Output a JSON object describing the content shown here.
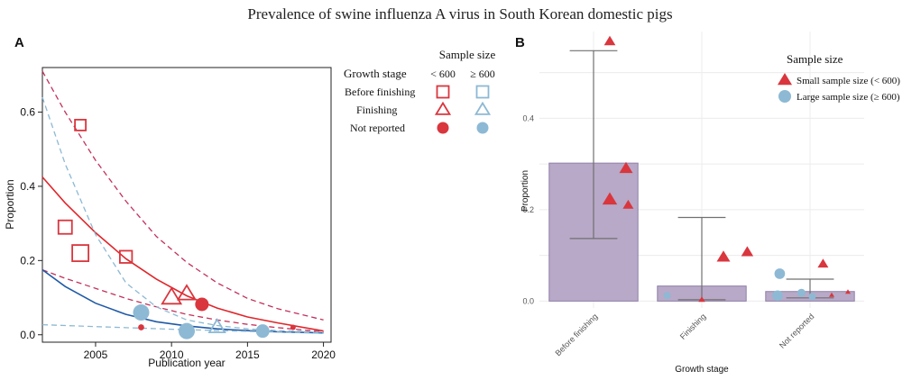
{
  "figure_title": "Prevalence of swine influenza A virus in South Korean domestic pigs",
  "colors": {
    "small": "#d9363e",
    "large": "#8db9d4",
    "fit_small": "#e0262b",
    "fit_large": "#1f5aa6",
    "ci_small": "#c3305a",
    "ci_large": "#8db9d4",
    "bar_fill": "#b7a9c7",
    "bar_stroke": "#8f7fa8",
    "whisker": "#707070"
  },
  "chart_data": [
    {
      "type": "scatter",
      "panel_label": "A",
      "xlabel": "Publication year",
      "ylabel": "Proportion",
      "xlim": [
        2001.5,
        2020.5
      ],
      "ylim": [
        -0.02,
        0.72
      ],
      "xticks": [
        "2005",
        "2010",
        "2015",
        "2020"
      ],
      "yticks": [
        "0.0",
        "0.2",
        "0.4",
        "0.6"
      ],
      "legend": {
        "title": "Sample size",
        "header_stage": "Growth stage",
        "header_small": "< 600",
        "header_large": "≥ 600",
        "rows": [
          {
            "label": "Before finishing",
            "symbol": "square"
          },
          {
            "label": "Finishing",
            "symbol": "triangle"
          },
          {
            "label": "Not reported",
            "symbol": "circle"
          }
        ]
      },
      "points": [
        {
          "x": 2003,
          "y": 0.29,
          "stage": "Before finishing",
          "size": "small",
          "scale": 1.0
        },
        {
          "x": 2004,
          "y": 0.565,
          "stage": "Before finishing",
          "size": "small",
          "scale": 0.8
        },
        {
          "x": 2004,
          "y": 0.22,
          "stage": "Before finishing",
          "size": "small",
          "scale": 1.2
        },
        {
          "x": 2007,
          "y": 0.21,
          "stage": "Before finishing",
          "size": "small",
          "scale": 0.9
        },
        {
          "x": 2010,
          "y": 0.1,
          "stage": "Finishing",
          "size": "small",
          "scale": 1.2
        },
        {
          "x": 2011,
          "y": 0.11,
          "stage": "Finishing",
          "size": "small",
          "scale": 1.1
        },
        {
          "x": 2011,
          "y": 0.013,
          "stage": "Finishing",
          "size": "small",
          "scale": 0.5
        },
        {
          "x": 2012,
          "y": 0.082,
          "stage": "Not reported",
          "size": "small",
          "scale": 1.0
        },
        {
          "x": 2008,
          "y": 0.02,
          "stage": "Not reported",
          "size": "small",
          "scale": 0.45
        },
        {
          "x": 2018,
          "y": 0.02,
          "stage": "Not reported",
          "size": "small",
          "scale": 0.4
        },
        {
          "x": 2008,
          "y": 0.06,
          "stage": "Not reported",
          "size": "large",
          "scale": 1.2
        },
        {
          "x": 2011,
          "y": 0.01,
          "stage": "Not reported",
          "size": "large",
          "scale": 1.2
        },
        {
          "x": 2016,
          "y": 0.01,
          "stage": "Not reported",
          "size": "large",
          "scale": 1.0
        },
        {
          "x": 2013,
          "y": 0.02,
          "stage": "Finishing",
          "size": "large",
          "scale": 1.0
        }
      ],
      "curves": [
        {
          "name": "fit small",
          "kind": "fit_small",
          "dashed": false,
          "x": [
            2001.5,
            2003,
            2005,
            2007,
            2009,
            2011,
            2013,
            2015,
            2017,
            2020
          ],
          "y": [
            0.425,
            0.355,
            0.275,
            0.205,
            0.15,
            0.105,
            0.072,
            0.048,
            0.032,
            0.01
          ]
        },
        {
          "name": "ci small upper",
          "kind": "ci_small",
          "dashed": true,
          "x": [
            2001.5,
            2003,
            2005,
            2007,
            2009,
            2011,
            2013,
            2015,
            2017,
            2020
          ],
          "y": [
            0.71,
            0.6,
            0.47,
            0.36,
            0.265,
            0.195,
            0.14,
            0.098,
            0.07,
            0.04
          ]
        },
        {
          "name": "ci small lower",
          "kind": "ci_small",
          "dashed": true,
          "x": [
            2001.5,
            2003,
            2005,
            2007,
            2009,
            2011,
            2013,
            2015,
            2017,
            2020
          ],
          "y": [
            0.175,
            0.152,
            0.125,
            0.098,
            0.075,
            0.055,
            0.04,
            0.028,
            0.019,
            0.008
          ]
        },
        {
          "name": "fit large",
          "kind": "fit_large",
          "dashed": false,
          "x": [
            2001.5,
            2003,
            2005,
            2007,
            2009,
            2011,
            2013,
            2015,
            2017,
            2020
          ],
          "y": [
            0.175,
            0.13,
            0.085,
            0.055,
            0.035,
            0.024,
            0.016,
            0.011,
            0.008,
            0.005
          ]
        },
        {
          "name": "ci large upper",
          "kind": "ci_large",
          "dashed": true,
          "x": [
            2001.5,
            2003,
            2005,
            2007,
            2009,
            2011,
            2013,
            2015,
            2017,
            2020
          ],
          "y": [
            0.64,
            0.46,
            0.27,
            0.14,
            0.075,
            0.04,
            0.025,
            0.016,
            0.011,
            0.007
          ]
        },
        {
          "name": "ci large lower",
          "kind": "ci_large",
          "dashed": true,
          "x": [
            2001.5,
            2005,
            2010,
            2015,
            2020
          ],
          "y": [
            0.027,
            0.022,
            0.015,
            0.009,
            0.004
          ]
        }
      ]
    },
    {
      "type": "bar",
      "panel_label": "B",
      "xlabel": "Growth stage",
      "ylabel": "Proportion",
      "ylim": [
        -0.015,
        0.59
      ],
      "yticks": [
        "0.0",
        "0.2",
        "0.4"
      ],
      "categories": [
        "Before finishing",
        "Finishing",
        "Not reported"
      ],
      "values": [
        0.302,
        0.033,
        0.021
      ],
      "ci": [
        [
          0.137,
          0.548
        ],
        [
          0.003,
          0.183
        ],
        [
          0.007,
          0.048
        ]
      ],
      "legend": {
        "title": "Sample size",
        "entries": [
          {
            "label": "Small sample size (< 600)",
            "symbol": "triangle"
          },
          {
            "label": "Large sample size (≥ 600)",
            "symbol": "circle"
          }
        ]
      },
      "points": [
        {
          "category": "Before finishing",
          "offset": 0.15,
          "y": 0.568,
          "size": "small",
          "scale": 0.85
        },
        {
          "category": "Before finishing",
          "offset": 0.3,
          "y": 0.29,
          "size": "small",
          "scale": 1.0
        },
        {
          "category": "Before finishing",
          "offset": 0.15,
          "y": 0.222,
          "size": "small",
          "scale": 1.1
        },
        {
          "category": "Before finishing",
          "offset": 0.32,
          "y": 0.21,
          "size": "small",
          "scale": 0.8
        },
        {
          "category": "Finishing",
          "offset": 0.2,
          "y": 0.096,
          "size": "small",
          "scale": 1.0
        },
        {
          "category": "Finishing",
          "offset": 0.42,
          "y": 0.107,
          "size": "small",
          "scale": 0.9
        },
        {
          "category": "Finishing",
          "offset": 0.0,
          "y": 0.003,
          "size": "small",
          "scale": 0.5
        },
        {
          "category": "Finishing",
          "offset": -0.32,
          "y": 0.012,
          "size": "large",
          "scale": 0.6
        },
        {
          "category": "Not reported",
          "offset": 0.12,
          "y": 0.081,
          "size": "small",
          "scale": 0.8
        },
        {
          "category": "Not reported",
          "offset": 0.35,
          "y": 0.02,
          "size": "small",
          "scale": 0.4
        },
        {
          "category": "Not reported",
          "offset": 0.2,
          "y": 0.013,
          "size": "small",
          "scale": 0.4
        },
        {
          "category": "Not reported",
          "offset": -0.28,
          "y": 0.06,
          "size": "large",
          "scale": 0.9
        },
        {
          "category": "Not reported",
          "offset": -0.3,
          "y": 0.012,
          "size": "large",
          "scale": 0.9
        },
        {
          "category": "Not reported",
          "offset": -0.08,
          "y": 0.018,
          "size": "large",
          "scale": 0.7
        },
        {
          "category": "Not reported",
          "offset": 0.02,
          "y": 0.01,
          "size": "large",
          "scale": 0.6
        }
      ]
    }
  ]
}
